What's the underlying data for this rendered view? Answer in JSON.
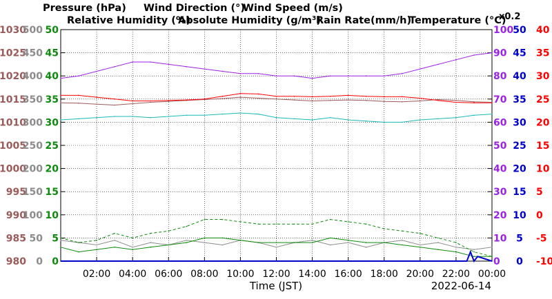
{
  "chart_data": {
    "type": "line",
    "date": "2022-06-14",
    "xlabel": "Time (JST)",
    "x_ticks": [
      "02:00",
      "04:00",
      "06:00",
      "08:00",
      "10:00",
      "12:00",
      "14:00",
      "16:00",
      "18:00",
      "20:00",
      "22:00",
      "00:00"
    ],
    "x_range_hours": [
      0,
      24
    ],
    "grid": true,
    "legend": [
      {
        "label": "Pressure (hPa)",
        "color": "#9b5a5a"
      },
      {
        "label": "Wind Direction (°)",
        "color": "#8c8c8c"
      },
      {
        "label": "Wind Speed (m/s)",
        "color": "#0d8a0d"
      },
      {
        "label": "Relative Humidity (%)",
        "color": "#9b22e6"
      },
      {
        "label": "Absolute Humidity (g/m³)",
        "color": "#1cb9b9"
      },
      {
        "label": "Rain Rate(mm/h)",
        "color": "#0000cc"
      },
      {
        "label": "Temperature (°C)",
        "color": "#ff0000"
      }
    ],
    "abs_humidity_scale_note": "x0.2",
    "axes": {
      "pressure": {
        "ticks": [
          "980",
          "985",
          "990",
          "995",
          "1000",
          "1005",
          "1010",
          "1015",
          "1020",
          "1025",
          "1030"
        ],
        "ylim": [
          980,
          1030
        ],
        "color": "#9b5a5a"
      },
      "wind_direction": {
        "ticks": [
          "0",
          "50",
          "100",
          "150",
          "200",
          "250",
          "300",
          "350",
          "400",
          "450",
          "500"
        ],
        "ylim": [
          0,
          500
        ],
        "color": "#8c8c8c"
      },
      "wind_speed": {
        "ticks": [
          "0",
          "5",
          "10",
          "15",
          "20",
          "25",
          "30",
          "35",
          "40",
          "45",
          "50"
        ],
        "ylim": [
          0,
          50
        ],
        "color": "#0d8a0d"
      },
      "relative_humidity": {
        "ticks": [
          "0",
          "10",
          "20",
          "30",
          "40",
          "50",
          "60",
          "70",
          "80",
          "90",
          "100"
        ],
        "ylim": [
          0,
          100
        ],
        "color": "#9b22e6"
      },
      "rain_rate": {
        "ticks": [
          "0",
          "5",
          "10",
          "15",
          "20",
          "25",
          "30",
          "35",
          "40",
          "45",
          "50"
        ],
        "ylim": [
          0,
          50
        ],
        "color": "#0000cc"
      },
      "temperature": {
        "ticks": [
          "-10",
          "-5",
          "0",
          "5",
          "10",
          "15",
          "20",
          "25",
          "30",
          "35",
          "40"
        ],
        "ylim": [
          -10,
          40
        ],
        "color": "#ff0000"
      }
    },
    "series": [
      {
        "name": "Relative Humidity (%)",
        "axis": "relative_humidity",
        "color": "#9b22e6",
        "x": [
          0,
          1,
          2,
          3,
          4,
          5,
          6,
          7,
          8,
          9,
          10,
          11,
          12,
          13,
          14,
          15,
          16,
          17,
          18,
          19,
          20,
          21,
          22,
          23,
          24
        ],
        "y": [
          79,
          80,
          82,
          84,
          86,
          86,
          85,
          84,
          83,
          82,
          81,
          81,
          80,
          80,
          79,
          80,
          80,
          80,
          80,
          81,
          83,
          85,
          87,
          89,
          90
        ]
      },
      {
        "name": "Pressure (hPa)",
        "axis": "pressure",
        "color": "#9b5a5a",
        "x": [
          0,
          1,
          2,
          3,
          4,
          5,
          6,
          7,
          8,
          9,
          10,
          11,
          12,
          13,
          14,
          15,
          16,
          17,
          18,
          19,
          20,
          21,
          22,
          23,
          24
        ],
        "y": [
          1014.2,
          1014.1,
          1013.9,
          1013.7,
          1014.0,
          1014.3,
          1014.5,
          1014.7,
          1014.9,
          1015.1,
          1015.4,
          1015.2,
          1015.0,
          1014.8,
          1014.6,
          1014.7,
          1014.8,
          1014.7,
          1014.5,
          1014.4,
          1014.6,
          1014.9,
          1014.7,
          1014.4,
          1014.3
        ]
      },
      {
        "name": "Absolute Humidity (g/m³)",
        "axis": "relative_humidity",
        "color": "#1cb9b9",
        "x": [
          0,
          1,
          2,
          3,
          4,
          5,
          6,
          7,
          8,
          9,
          10,
          11,
          12,
          13,
          14,
          15,
          16,
          17,
          18,
          19,
          20,
          21,
          22,
          23,
          24
        ],
        "y": [
          61,
          61.5,
          62,
          62.5,
          62.5,
          62,
          62.5,
          63,
          63,
          63.5,
          64,
          63.5,
          62,
          61.5,
          61,
          62,
          61,
          60.5,
          60,
          60,
          61,
          61.5,
          62,
          63,
          63.5
        ]
      },
      {
        "name": "Temperature (°C)",
        "axis": "temperature",
        "color": "#ff0000",
        "x": [
          0,
          1,
          2,
          3,
          4,
          5,
          6,
          7,
          8,
          9,
          10,
          11,
          12,
          13,
          14,
          15,
          16,
          17,
          18,
          19,
          20,
          21,
          22,
          23,
          24
        ],
        "y": [
          25.8,
          25.8,
          25.4,
          25,
          24.6,
          24.6,
          24.7,
          24.8,
          25,
          25.6,
          26.2,
          26.1,
          25.6,
          25.6,
          25.5,
          25.6,
          25.8,
          25.6,
          25.5,
          25.5,
          25.2,
          24.7,
          24.3,
          24.2,
          24.2
        ]
      },
      {
        "name": "Wind Direction (°)",
        "axis": "wind_direction",
        "color": "#8c8c8c",
        "x": [
          0,
          1,
          2,
          3,
          4,
          5,
          6,
          7,
          8,
          9,
          10,
          11,
          12,
          13,
          14,
          15,
          16,
          17,
          18,
          19,
          20,
          21,
          22,
          23,
          24
        ],
        "y": [
          45,
          40,
          35,
          45,
          30,
          40,
          35,
          45,
          40,
          35,
          45,
          40,
          30,
          40,
          45,
          35,
          40,
          30,
          40,
          45,
          35,
          40,
          30,
          25,
          30
        ]
      },
      {
        "name": "Wind Speed (m/s)",
        "axis": "wind_speed",
        "color": "#0d8a0d",
        "x": [
          0,
          1,
          2,
          3,
          4,
          5,
          6,
          7,
          8,
          9,
          10,
          11,
          12,
          13,
          14,
          15,
          16,
          17,
          18,
          19,
          20,
          21,
          22,
          23,
          24
        ],
        "y": [
          3,
          2,
          2.5,
          3,
          2.5,
          3,
          3.5,
          4,
          5,
          5,
          4.5,
          4,
          4,
          4,
          4,
          5,
          4.5,
          4,
          4,
          3.5,
          3,
          2.5,
          2,
          1,
          1
        ]
      },
      {
        "name": "Wind Speed (m/s) gust",
        "axis": "wind_speed",
        "color": "#0d8a0d",
        "x": [
          0,
          1,
          2,
          3,
          4,
          5,
          6,
          7,
          8,
          9,
          10,
          11,
          12,
          13,
          14,
          15,
          16,
          17,
          18,
          19,
          20,
          21,
          22,
          23,
          24
        ],
        "y": [
          5,
          4,
          4.5,
          6,
          5,
          6,
          6.5,
          7.5,
          9,
          9,
          8.5,
          8,
          8,
          8,
          8,
          9,
          8.5,
          8,
          7,
          6.5,
          6,
          5,
          4,
          2,
          1
        ]
      },
      {
        "name": "Rain Rate(mm/h)",
        "axis": "rain_rate",
        "color": "#0000cc",
        "x": [
          0,
          22.6,
          22.8,
          23.0,
          23.2,
          24
        ],
        "y": [
          0,
          0,
          2,
          0,
          1,
          0
        ]
      }
    ]
  }
}
